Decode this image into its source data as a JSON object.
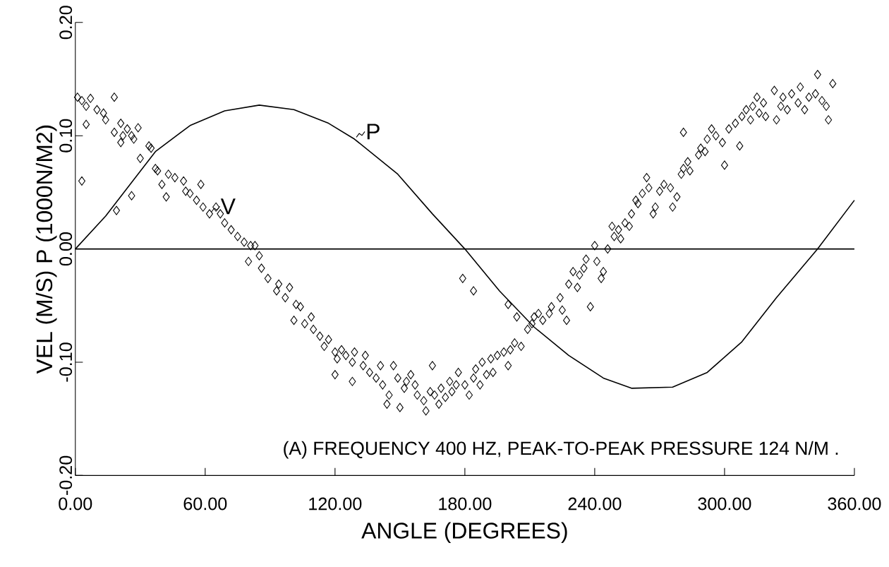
{
  "chart_data": {
    "type": "scatter",
    "xlabel": "ANGLE (DEGREES)",
    "ylabel": "VEL (M/S)   P (1000N/M2)",
    "xlim": [
      0,
      360
    ],
    "ylim": [
      -0.2,
      0.2
    ],
    "xticks": [
      {
        "value": 0,
        "label": "0.00"
      },
      {
        "value": 60,
        "label": "60.00"
      },
      {
        "value": 120,
        "label": "120.00"
      },
      {
        "value": 180,
        "label": "180.00"
      },
      {
        "value": 240,
        "label": "240.00"
      },
      {
        "value": 300,
        "label": "300.00"
      },
      {
        "value": 360,
        "label": "360.00"
      }
    ],
    "yticks": [
      {
        "value": 0.2,
        "label": "0.20"
      },
      {
        "value": 0.1,
        "label": "0.10"
      },
      {
        "value": 0,
        "label": "0.00"
      },
      {
        "value": -0.1,
        "label": "-0.10"
      },
      {
        "value": -0.2,
        "label": "-0.20"
      }
    ],
    "legend": "top left",
    "ref_lines": [
      {
        "axis": "y",
        "value": 0,
        "color": "#000000"
      }
    ],
    "annotations": [
      "(A) FREQUENCY 400 HZ, PEAK-TO-PEAK PRESSURE 124 N/M ."
    ],
    "series": [
      {
        "type": "line",
        "name": "P",
        "color": "#000000",
        "marker": "none",
        "line_style": "solid",
        "x": [
          0,
          14,
          37,
          53,
          69,
          85,
          101,
          117,
          129,
          149,
          165,
          180,
          196,
          212,
          228,
          244,
          257,
          276,
          292,
          308,
          324,
          343,
          360
        ],
        "values": [
          0,
          0.029,
          0.086,
          0.109,
          0.122,
          0.127,
          0.123,
          0.111,
          0.097,
          0.066,
          0.031,
          0,
          -0.037,
          -0.069,
          -0.094,
          -0.114,
          -0.123,
          -0.122,
          -0.109,
          -0.082,
          -0.043,
          0,
          0.043
        ]
      },
      {
        "name": "V",
        "color": "#000000",
        "marker": "diamond",
        "x": [
          1,
          3,
          5,
          7,
          10,
          5,
          3,
          13,
          14,
          18,
          18,
          21,
          22,
          21,
          24,
          26,
          29,
          27,
          30,
          34,
          35,
          19,
          26,
          37,
          38,
          40,
          42,
          43,
          46,
          50,
          51,
          53,
          58,
          56,
          59,
          62,
          65,
          67,
          69,
          72,
          75,
          78,
          81,
          80,
          85,
          83,
          86,
          89,
          93,
          94,
          97,
          99,
          102,
          104,
          101,
          106,
          109,
          110,
          113,
          115,
          117,
          120,
          121,
          123,
          125,
          128,
          129,
          133,
          134,
          120,
          128,
          136,
          139,
          141,
          142,
          144,
          145,
          147,
          149,
          150,
          152,
          153,
          155,
          157,
          158,
          161,
          162,
          164,
          165,
          166,
          168,
          169,
          171,
          173,
          174,
          176,
          177,
          179,
          180,
          182,
          184,
          184,
          185,
          187,
          188,
          190,
          192,
          193,
          195,
          198,
          200,
          201,
          203,
          200,
          204,
          206,
          209,
          211,
          212,
          214,
          216,
          219,
          220,
          224,
          225,
          227,
          228,
          230,
          232,
          233,
          235,
          236,
          238,
          240,
          241,
          243,
          244,
          246,
          248,
          249,
          251,
          252,
          254,
          256,
          257,
          259,
          260,
          262,
          264,
          265,
          267,
          268,
          270,
          272,
          275,
          276,
          278,
          280,
          281,
          283,
          281,
          284,
          288,
          289,
          291,
          292,
          294,
          296,
          299,
          300,
          302,
          305,
          307,
          308,
          310,
          312,
          313,
          315,
          316,
          318,
          319,
          323,
          324,
          326,
          327,
          329,
          331,
          334,
          335,
          337,
          339,
          342,
          343,
          345,
          347,
          348,
          350
        ],
        "values": [
          0.134,
          0.131,
          0.126,
          0.133,
          0.123,
          0.11,
          0.06,
          0.12,
          0.114,
          0.134,
          0.103,
          0.111,
          0.1,
          0.094,
          0.106,
          0.1,
          0.107,
          0.097,
          0.08,
          0.091,
          0.089,
          0.034,
          0.047,
          0.071,
          0.069,
          0.057,
          0.046,
          0.066,
          0.063,
          0.06,
          0.051,
          0.049,
          0.057,
          0.043,
          0.037,
          0.031,
          0.037,
          0.031,
          0.023,
          0.017,
          0.011,
          0.006,
          0.003,
          -0.011,
          -0.006,
          0.003,
          -0.017,
          -0.026,
          -0.037,
          -0.031,
          -0.043,
          -0.034,
          -0.049,
          -0.051,
          -0.063,
          -0.066,
          -0.06,
          -0.071,
          -0.077,
          -0.086,
          -0.08,
          -0.091,
          -0.097,
          -0.089,
          -0.094,
          -0.1,
          -0.091,
          -0.103,
          -0.094,
          -0.111,
          -0.117,
          -0.109,
          -0.114,
          -0.103,
          -0.12,
          -0.137,
          -0.129,
          -0.103,
          -0.114,
          -0.14,
          -0.123,
          -0.117,
          -0.111,
          -0.12,
          -0.129,
          -0.134,
          -0.143,
          -0.126,
          -0.103,
          -0.129,
          -0.137,
          -0.123,
          -0.131,
          -0.117,
          -0.126,
          -0.12,
          -0.109,
          -0.026,
          -0.12,
          -0.129,
          -0.037,
          -0.114,
          -0.106,
          -0.12,
          -0.1,
          -0.111,
          -0.097,
          -0.109,
          -0.094,
          -0.091,
          -0.103,
          -0.089,
          -0.083,
          -0.049,
          -0.06,
          -0.086,
          -0.071,
          -0.066,
          -0.06,
          -0.057,
          -0.063,
          -0.057,
          -0.051,
          -0.043,
          -0.054,
          -0.063,
          -0.031,
          -0.02,
          -0.034,
          -0.023,
          -0.017,
          -0.009,
          -0.051,
          0.003,
          -0.011,
          -0.026,
          -0.02,
          0.0,
          0.02,
          0.011,
          0.017,
          0.009,
          0.023,
          0.02,
          0.031,
          0.043,
          0.04,
          0.049,
          0.063,
          0.054,
          0.031,
          0.037,
          0.051,
          0.057,
          0.054,
          0.037,
          0.046,
          0.066,
          0.071,
          0.077,
          0.103,
          0.069,
          0.083,
          0.089,
          0.086,
          0.097,
          0.106,
          0.1,
          0.094,
          0.074,
          0.106,
          0.111,
          0.091,
          0.117,
          0.123,
          0.114,
          0.126,
          0.134,
          0.12,
          0.129,
          0.117,
          0.14,
          0.114,
          0.126,
          0.134,
          0.123,
          0.137,
          0.129,
          0.143,
          0.123,
          0.134,
          0.137,
          0.154,
          0.131,
          0.126,
          0.114,
          0.146
        ]
      }
    ]
  }
}
